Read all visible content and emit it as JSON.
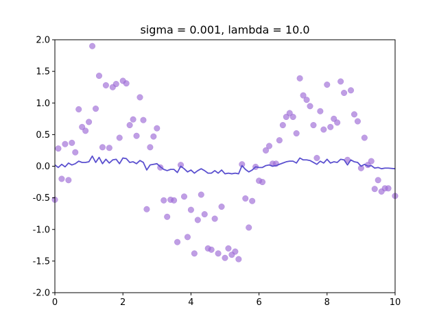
{
  "chart_data": {
    "type": "scatter",
    "title": "sigma = 0.001, lambda = 10.0",
    "xlabel": "",
    "ylabel": "",
    "xlim": [
      0,
      10
    ],
    "ylim": [
      -2.0,
      2.0
    ],
    "xticks": [
      "0",
      "2",
      "4",
      "6",
      "8",
      "10"
    ],
    "yticks": [
      "2.0",
      "1.5",
      "1.0",
      "0.5",
      "0.0",
      "-0.5",
      "-1.0",
      "-1.5",
      "-2.0"
    ],
    "grid": false,
    "legend": "none",
    "colors": {
      "points": "#9c6ad6",
      "line": "#5a4fcf"
    },
    "series": [
      {
        "kind": "scatter",
        "points": [
          [
            0.0,
            -0.53
          ],
          [
            0.1,
            0.28
          ],
          [
            0.2,
            -0.2
          ],
          [
            0.3,
            0.35
          ],
          [
            0.4,
            -0.22
          ],
          [
            0.5,
            0.37
          ],
          [
            0.6,
            0.22
          ],
          [
            0.7,
            0.9
          ],
          [
            0.8,
            0.62
          ],
          [
            0.9,
            0.56
          ],
          [
            1.0,
            0.7
          ],
          [
            1.1,
            1.9
          ],
          [
            1.2,
            0.91
          ],
          [
            1.3,
            1.43
          ],
          [
            1.4,
            0.3
          ],
          [
            1.5,
            1.28
          ],
          [
            1.6,
            0.29
          ],
          [
            1.7,
            1.25
          ],
          [
            1.8,
            1.3
          ],
          [
            1.9,
            0.45
          ],
          [
            2.0,
            1.35
          ],
          [
            2.1,
            1.31
          ],
          [
            2.2,
            0.65
          ],
          [
            2.3,
            0.74
          ],
          [
            2.4,
            0.48
          ],
          [
            2.5,
            1.09
          ],
          [
            2.6,
            0.73
          ],
          [
            2.7,
            -0.68
          ],
          [
            2.8,
            0.3
          ],
          [
            2.9,
            0.47
          ],
          [
            3.0,
            0.6
          ],
          [
            3.1,
            -0.02
          ],
          [
            3.2,
            -0.54
          ],
          [
            3.3,
            -0.8
          ],
          [
            3.4,
            -0.53
          ],
          [
            3.5,
            -0.54
          ],
          [
            3.6,
            -1.2
          ],
          [
            3.7,
            0.02
          ],
          [
            3.8,
            -0.48
          ],
          [
            3.9,
            -1.12
          ],
          [
            4.0,
            -0.69
          ],
          [
            4.1,
            -1.38
          ],
          [
            4.2,
            -0.85
          ],
          [
            4.3,
            -0.45
          ],
          [
            4.4,
            -0.76
          ],
          [
            4.5,
            -1.3
          ],
          [
            4.6,
            -1.32
          ],
          [
            4.7,
            -0.83
          ],
          [
            4.8,
            -1.38
          ],
          [
            4.9,
            -0.64
          ],
          [
            5.0,
            -1.45
          ],
          [
            5.1,
            -1.3
          ],
          [
            5.2,
            -1.4
          ],
          [
            5.3,
            -1.35
          ],
          [
            5.4,
            -1.47
          ],
          [
            5.5,
            0.03
          ],
          [
            5.6,
            -0.51
          ],
          [
            5.7,
            -0.97
          ],
          [
            5.8,
            -0.55
          ],
          [
            5.9,
            -0.01
          ],
          [
            6.0,
            -0.23
          ],
          [
            6.1,
            -0.25
          ],
          [
            6.2,
            0.25
          ],
          [
            6.3,
            0.32
          ],
          [
            6.4,
            0.04
          ],
          [
            6.5,
            0.04
          ],
          [
            6.6,
            0.41
          ],
          [
            6.7,
            0.65
          ],
          [
            6.8,
            0.78
          ],
          [
            6.9,
            0.84
          ],
          [
            7.0,
            0.78
          ],
          [
            7.1,
            0.52
          ],
          [
            7.2,
            1.39
          ],
          [
            7.3,
            1.12
          ],
          [
            7.4,
            1.05
          ],
          [
            7.5,
            0.95
          ],
          [
            7.6,
            0.65
          ],
          [
            7.7,
            0.13
          ],
          [
            7.8,
            0.87
          ],
          [
            7.9,
            0.58
          ],
          [
            8.0,
            1.29
          ],
          [
            8.1,
            0.62
          ],
          [
            8.2,
            0.75
          ],
          [
            8.3,
            0.69
          ],
          [
            8.4,
            1.34
          ],
          [
            8.5,
            1.16
          ],
          [
            8.6,
            0.1
          ],
          [
            8.7,
            1.2
          ],
          [
            8.8,
            0.82
          ],
          [
            8.9,
            0.71
          ],
          [
            9.0,
            -0.03
          ],
          [
            9.1,
            0.45
          ],
          [
            9.2,
            0.02
          ],
          [
            9.3,
            0.08
          ],
          [
            9.4,
            -0.36
          ],
          [
            9.5,
            -0.22
          ],
          [
            9.6,
            -0.4
          ],
          [
            9.7,
            -0.35
          ],
          [
            9.8,
            -0.35
          ],
          [
            10.0,
            -0.47
          ]
        ]
      },
      {
        "kind": "line",
        "points": [
          [
            0.0,
            0.02
          ],
          [
            0.1,
            -0.02
          ],
          [
            0.2,
            0.03
          ],
          [
            0.3,
            -0.01
          ],
          [
            0.4,
            0.05
          ],
          [
            0.5,
            0.02
          ],
          [
            0.6,
            0.04
          ],
          [
            0.7,
            0.08
          ],
          [
            0.8,
            0.06
          ],
          [
            0.9,
            0.06
          ],
          [
            1.0,
            0.07
          ],
          [
            1.1,
            0.16
          ],
          [
            1.2,
            0.06
          ],
          [
            1.3,
            0.14
          ],
          [
            1.4,
            0.04
          ],
          [
            1.5,
            0.11
          ],
          [
            1.6,
            0.05
          ],
          [
            1.7,
            0.1
          ],
          [
            1.8,
            0.11
          ],
          [
            1.9,
            0.04
          ],
          [
            2.0,
            0.13
          ],
          [
            2.1,
            0.12
          ],
          [
            2.2,
            0.06
          ],
          [
            2.3,
            0.07
          ],
          [
            2.4,
            0.04
          ],
          [
            2.5,
            0.09
          ],
          [
            2.6,
            0.06
          ],
          [
            2.7,
            -0.06
          ],
          [
            2.8,
            0.02
          ],
          [
            2.9,
            0.03
          ],
          [
            3.0,
            0.04
          ],
          [
            3.1,
            -0.01
          ],
          [
            3.2,
            -0.05
          ],
          [
            3.3,
            -0.07
          ],
          [
            3.4,
            -0.05
          ],
          [
            3.5,
            -0.05
          ],
          [
            3.6,
            -0.1
          ],
          [
            3.7,
            0.0
          ],
          [
            3.8,
            -0.04
          ],
          [
            3.9,
            -0.09
          ],
          [
            4.0,
            -0.06
          ],
          [
            4.1,
            -0.11
          ],
          [
            4.2,
            -0.07
          ],
          [
            4.3,
            -0.04
          ],
          [
            4.4,
            -0.07
          ],
          [
            4.5,
            -0.11
          ],
          [
            4.6,
            -0.11
          ],
          [
            4.7,
            -0.07
          ],
          [
            4.8,
            -0.11
          ],
          [
            4.9,
            -0.06
          ],
          [
            5.0,
            -0.12
          ],
          [
            5.1,
            -0.11
          ],
          [
            5.2,
            -0.12
          ],
          [
            5.3,
            -0.11
          ],
          [
            5.4,
            -0.12
          ],
          [
            5.5,
            0.01
          ],
          [
            5.6,
            -0.05
          ],
          [
            5.7,
            -0.09
          ],
          [
            5.8,
            -0.06
          ],
          [
            5.9,
            -0.01
          ],
          [
            6.0,
            -0.02
          ],
          [
            6.1,
            -0.02
          ],
          [
            6.2,
            0.01
          ],
          [
            6.3,
            0.02
          ],
          [
            6.4,
            0.0
          ],
          [
            6.5,
            0.01
          ],
          [
            6.6,
            0.03
          ],
          [
            6.7,
            0.05
          ],
          [
            6.8,
            0.07
          ],
          [
            6.9,
            0.08
          ],
          [
            7.0,
            0.08
          ],
          [
            7.1,
            0.05
          ],
          [
            7.2,
            0.13
          ],
          [
            7.3,
            0.1
          ],
          [
            7.4,
            0.1
          ],
          [
            7.5,
            0.09
          ],
          [
            7.6,
            0.06
          ],
          [
            7.7,
            0.03
          ],
          [
            7.8,
            0.08
          ],
          [
            7.9,
            0.05
          ],
          [
            8.0,
            0.11
          ],
          [
            8.1,
            0.05
          ],
          [
            8.2,
            0.07
          ],
          [
            8.3,
            0.06
          ],
          [
            8.4,
            0.11
          ],
          [
            8.5,
            0.1
          ],
          [
            8.6,
            0.02
          ],
          [
            8.7,
            0.1
          ],
          [
            8.8,
            0.07
          ],
          [
            8.9,
            0.06
          ],
          [
            9.0,
            0.0
          ],
          [
            9.1,
            0.03
          ],
          [
            9.2,
            0.0
          ],
          [
            9.3,
            0.01
          ],
          [
            9.4,
            -0.03
          ],
          [
            9.5,
            -0.02
          ],
          [
            9.6,
            -0.04
          ],
          [
            9.7,
            -0.03
          ],
          [
            9.8,
            -0.03
          ],
          [
            10.0,
            -0.04
          ]
        ]
      }
    ]
  }
}
